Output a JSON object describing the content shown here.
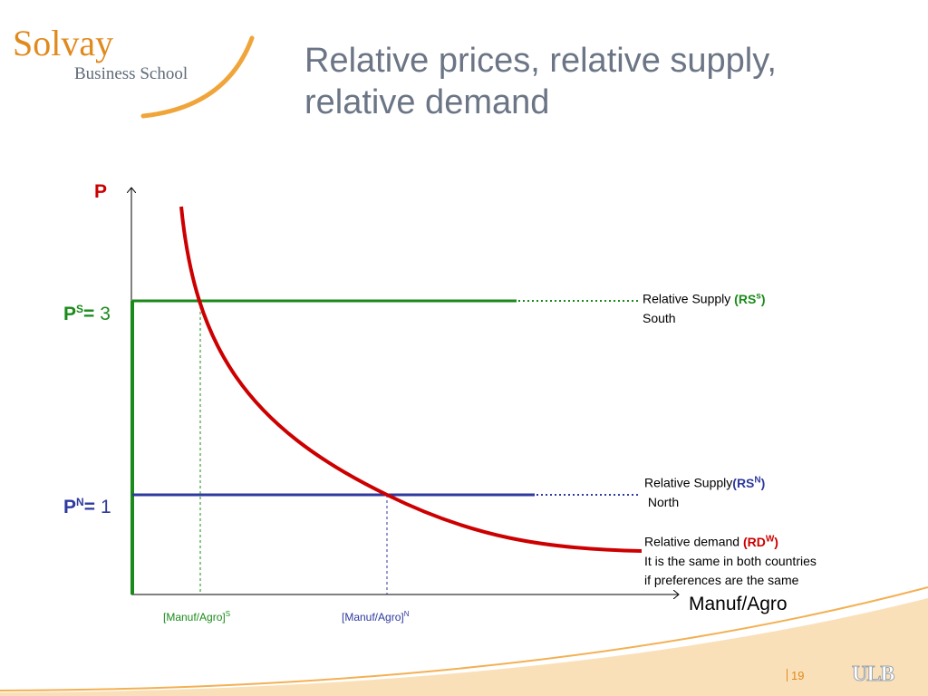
{
  "logo": {
    "line1": "Solvay",
    "line2": "Business School"
  },
  "title_line1": "Relative prices, relative supply,",
  "title_line2": "relative demand",
  "chart_data": {
    "type": "line",
    "y_axis_label": "P",
    "x_axis_label": "Manuf/Agro",
    "price_levels": [
      {
        "label_main": "P",
        "label_sup": "S",
        "label_eq": "=",
        "value": 3,
        "value_text": "3",
        "color": "#1a8a1a"
      },
      {
        "label_main": "P",
        "label_sup": "N",
        "label_eq": "=",
        "value": 1,
        "value_text": "1",
        "color": "#2e3a9e"
      }
    ],
    "series": [
      {
        "name": "Relative Supply (RS^s) South",
        "color": "#1a8a1a"
      },
      {
        "name": "Relative Supply(RS^N) North",
        "color": "#2e3a9e"
      },
      {
        "name": "Relative demand (RD^W)",
        "color": "#cc0000"
      }
    ],
    "x_ticks": [
      {
        "text": "[Manuf/Agro]",
        "sup": "S",
        "color": "#1a8a1a"
      },
      {
        "text": "[Manuf/Agro]",
        "sup": "N",
        "color": "#2e3a9e"
      }
    ]
  },
  "annotations": {
    "rs_south": {
      "text": "Relative Supply ",
      "abbr": "(RS",
      "sup": "s",
      "close": ")",
      "line2": "South"
    },
    "rs_north": {
      "text": "Relative Supply",
      "abbr": "(RS",
      "sup": "N",
      "close": ")",
      "line2": " North"
    },
    "rd": {
      "text": "Relative demand ",
      "abbr": "(RD",
      "sup": "W",
      "close": ")",
      "line2": "It is the same in both countries",
      "line3": "if preferences are the same"
    }
  },
  "footer": {
    "page": "19"
  },
  "colors": {
    "accent": "#e08a1e",
    "green": "#1a8a1a",
    "blue": "#2e3a9e",
    "red": "#cc0000",
    "title": "#6b7585"
  }
}
